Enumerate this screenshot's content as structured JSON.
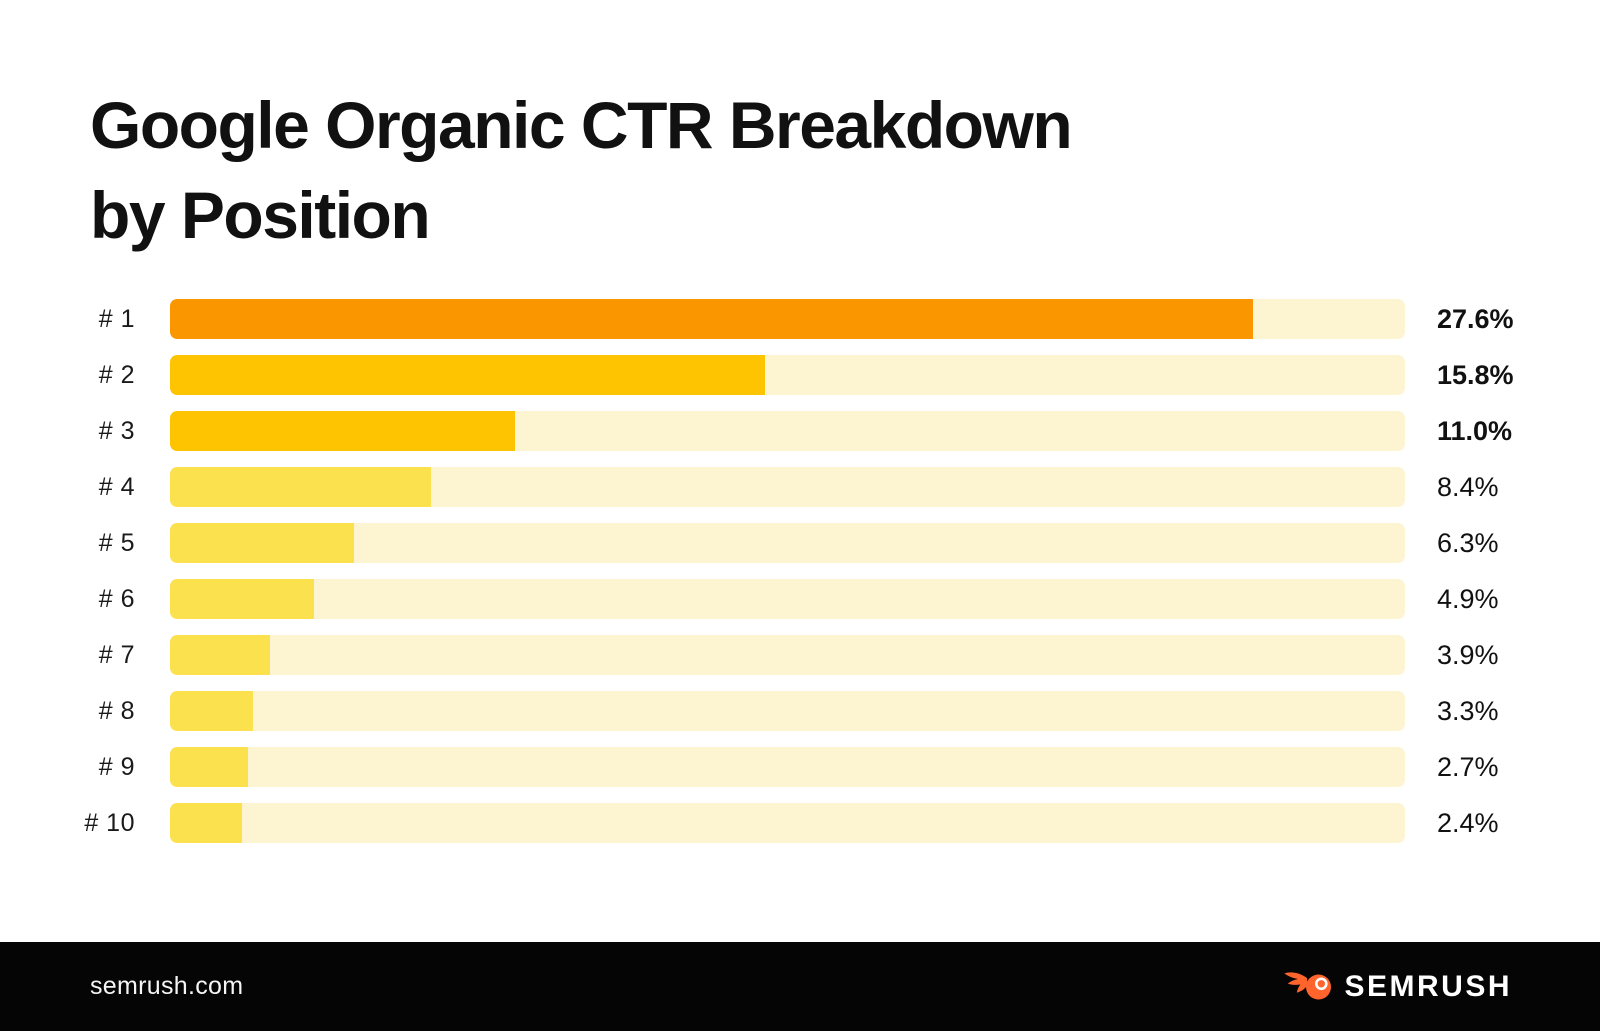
{
  "title": {
    "line1": "Google Organic CTR Breakdown",
    "line2": "by Position"
  },
  "chart_data": {
    "type": "bar",
    "orientation": "horizontal",
    "title": "Google Organic CTR Breakdown by Position",
    "xlabel": "",
    "ylabel": "",
    "categories": [
      "# 1",
      "# 2",
      "# 3",
      "# 4",
      "# 5",
      "# 6",
      "# 7",
      "# 8",
      "# 9",
      "# 10"
    ],
    "values": [
      27.6,
      15.8,
      11.0,
      8.4,
      6.3,
      4.9,
      3.9,
      3.3,
      2.7,
      2.4
    ],
    "value_labels": [
      "27.6%",
      "15.8%",
      "11.0%",
      "8.4%",
      "6.3%",
      "4.9%",
      "3.9%",
      "3.3%",
      "2.7%",
      "2.4%"
    ],
    "unit": "%",
    "grid": false,
    "legend": false,
    "bar_colors": [
      "#FA9600",
      "#FEC401",
      "#FEC401",
      "#FBE14E",
      "#FBE14E",
      "#FBE14E",
      "#FBE14E",
      "#FBE14E",
      "#FBE14E",
      "#FBE14E"
    ],
    "track_color": "#FDF4D1",
    "bar_width_pct_of_track": [
      87.7,
      48.2,
      27.9,
      21.1,
      14.9,
      11.7,
      8.1,
      6.7,
      6.3,
      5.8
    ],
    "bold_value_labels": [
      true,
      true,
      true,
      false,
      false,
      false,
      false,
      false,
      false,
      false
    ]
  },
  "footer": {
    "website": "semrush.com",
    "brand": "SEMRUSH",
    "logo_icon": "semrush-flame-icon",
    "logo_color": "#FF642D",
    "background": "#050505"
  }
}
